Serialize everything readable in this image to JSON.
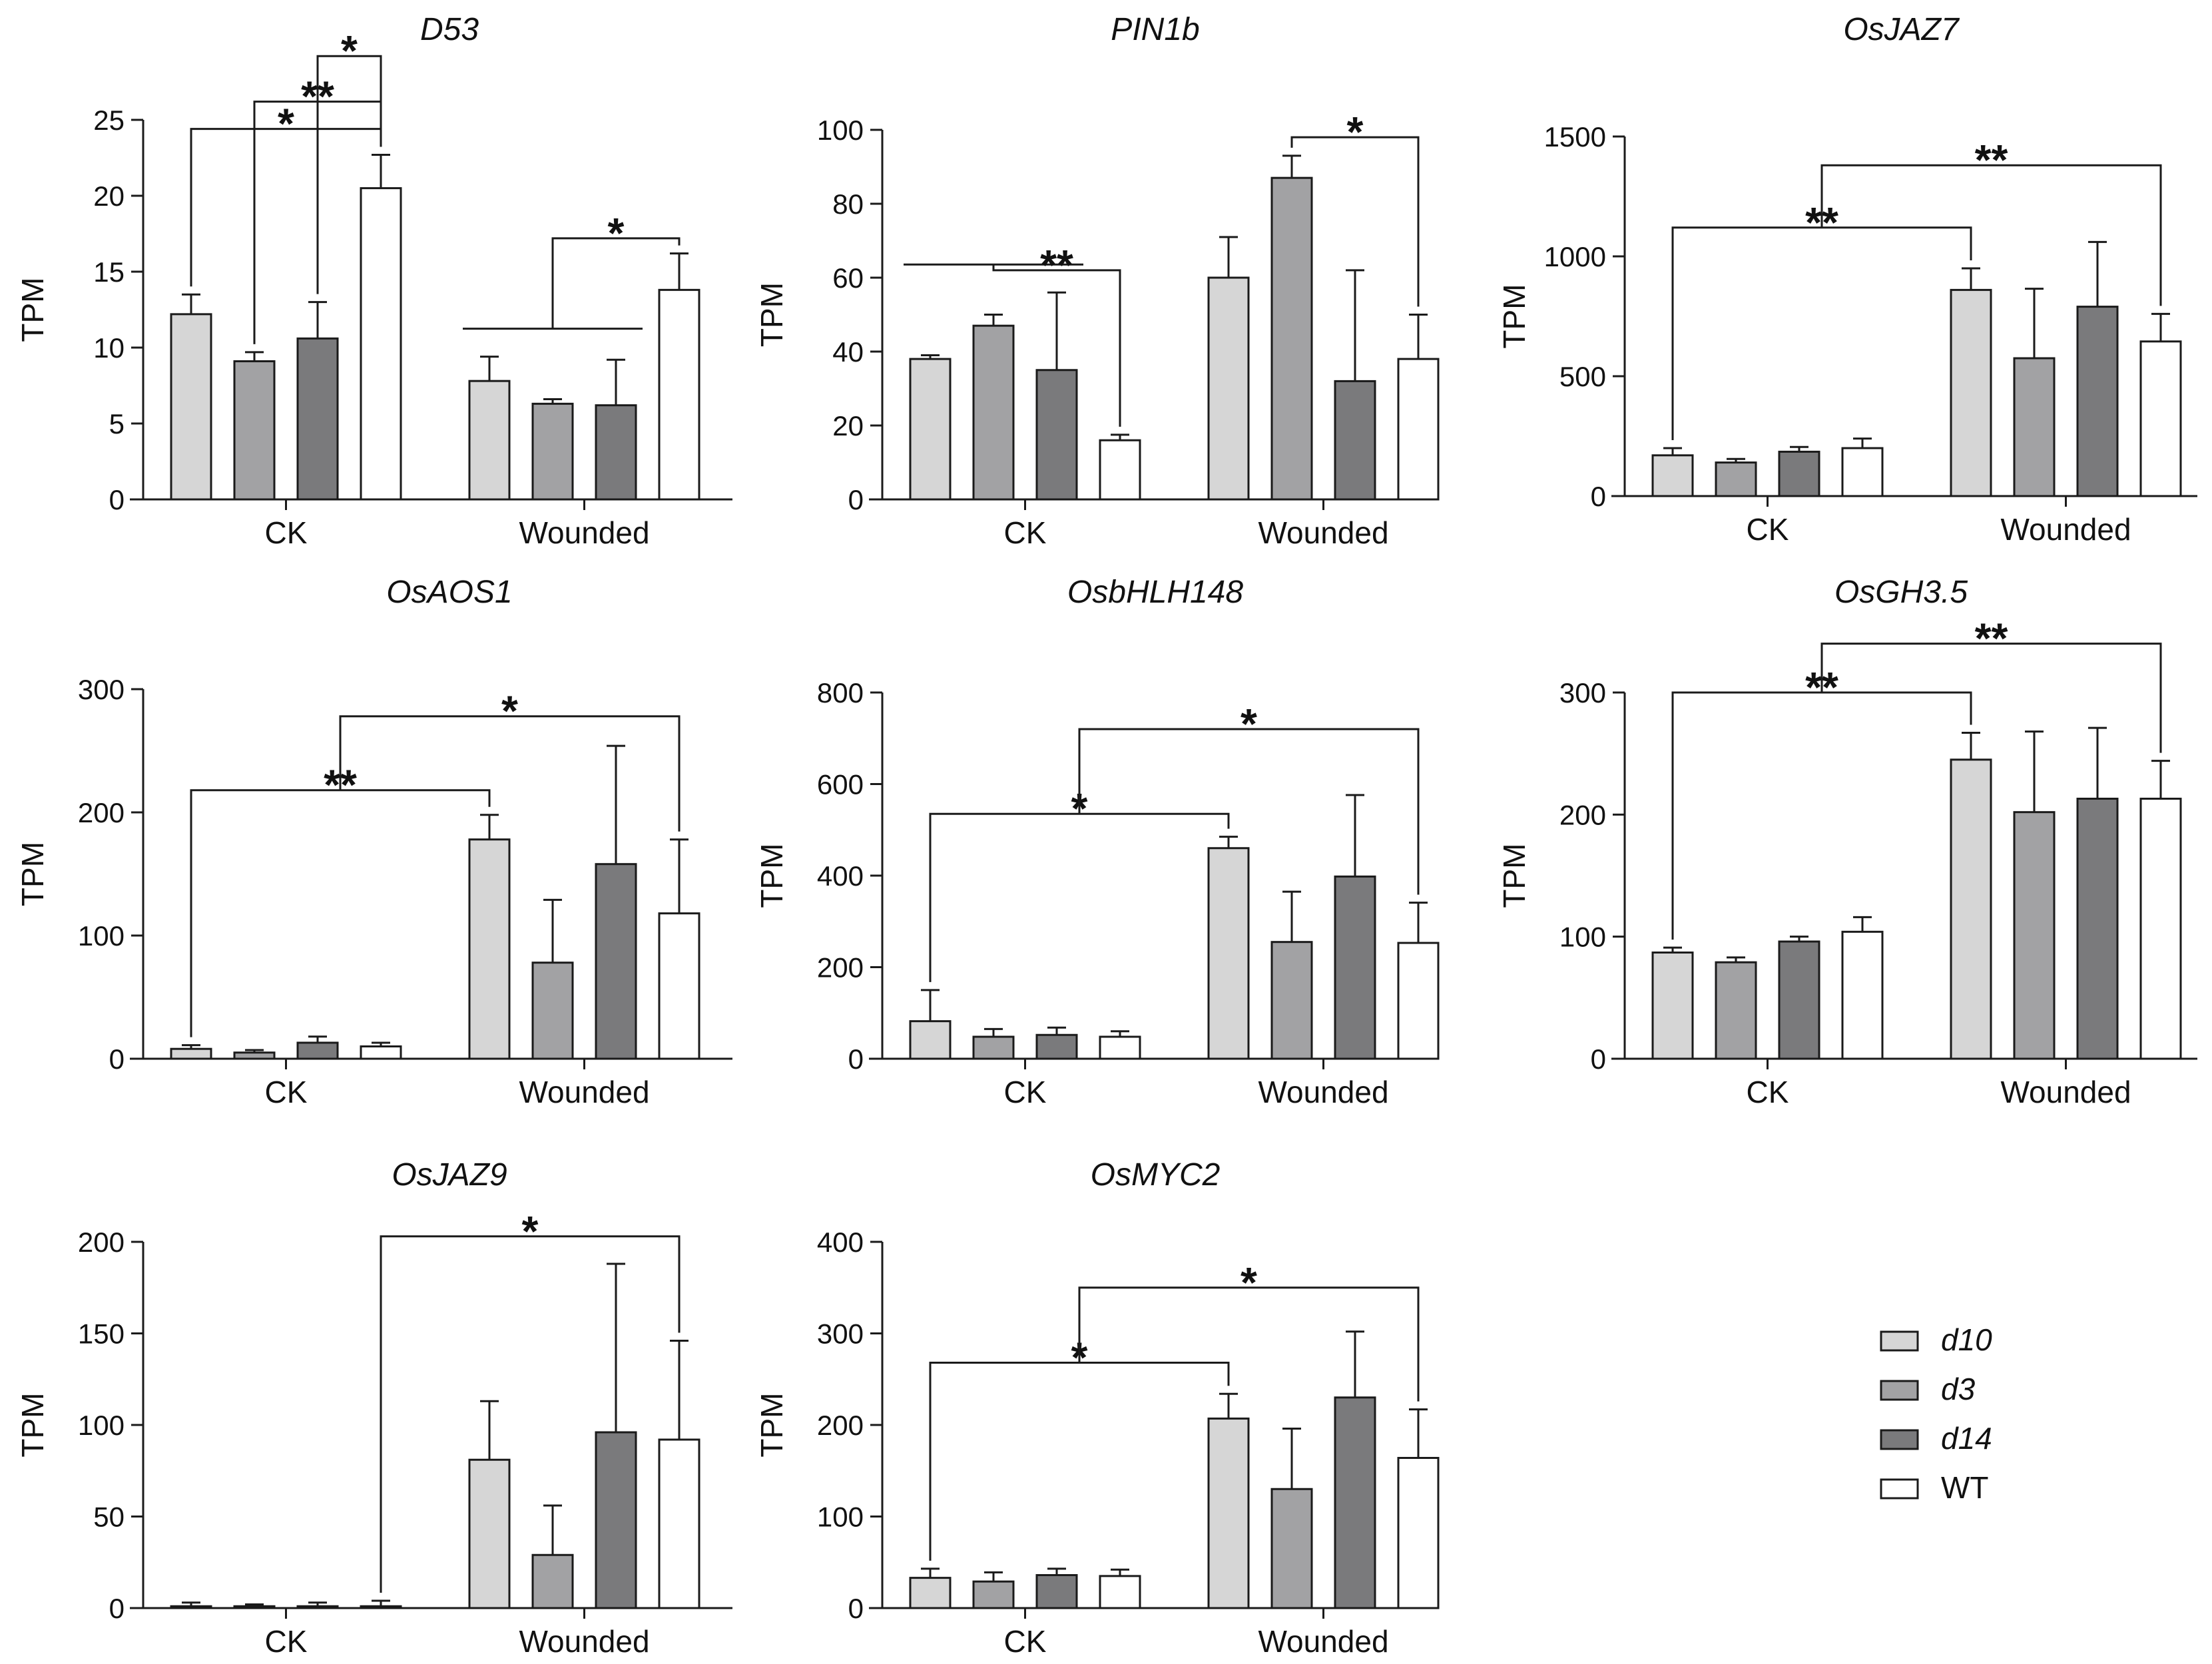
{
  "chart_data": [
    {
      "type": "bar",
      "title": "D53",
      "ylabel": "TPM",
      "xlabel": "",
      "ylim": [
        0,
        25
      ],
      "yticks": [
        0,
        5,
        10,
        15,
        20,
        25
      ],
      "categories": [
        "CK",
        "Wounded"
      ],
      "series": [
        {
          "name": "d10",
          "values": [
            12.2,
            7.8
          ],
          "errors": [
            1.3,
            1.6
          ]
        },
        {
          "name": "d3",
          "values": [
            9.1,
            6.3
          ],
          "errors": [
            0.6,
            0.3
          ]
        },
        {
          "name": "d14",
          "values": [
            10.6,
            6.2
          ],
          "errors": [
            2.4,
            3.0
          ]
        },
        {
          "name": "WT",
          "values": [
            20.5,
            13.8
          ],
          "errors": [
            2.2,
            2.4
          ]
        }
      ],
      "significance": [
        {
          "label": "*",
          "from": [
            0,
            0
          ],
          "to": [
            0,
            3
          ],
          "level": 24.4
        },
        {
          "label": "**",
          "from": [
            0,
            1
          ],
          "to": [
            0,
            3
          ],
          "level": 26.2
        },
        {
          "label": "*",
          "from": [
            0,
            2
          ],
          "to": [
            0,
            3
          ],
          "level": 29.2
        },
        {
          "label": "*",
          "fromGroup": 1,
          "to": [
            1,
            3
          ],
          "level": 17.2
        }
      ]
    },
    {
      "type": "bar",
      "title": "PIN1b",
      "ylabel": "TPM",
      "xlabel": "",
      "ylim": [
        0,
        100
      ],
      "yticks": [
        0,
        20,
        40,
        60,
        80,
        100
      ],
      "categories": [
        "CK",
        "Wounded"
      ],
      "series": [
        {
          "name": "d10",
          "values": [
            38,
            60
          ],
          "errors": [
            1,
            11
          ]
        },
        {
          "name": "d3",
          "values": [
            47,
            87
          ],
          "errors": [
            3,
            6
          ]
        },
        {
          "name": "d14",
          "values": [
            35,
            32
          ],
          "errors": [
            21,
            30
          ]
        },
        {
          "name": "WT",
          "values": [
            16,
            38
          ],
          "errors": [
            1.5,
            12
          ]
        }
      ],
      "significance": [
        {
          "label": "**",
          "fromGroup": 0,
          "to": [
            0,
            3
          ],
          "level": 62
        },
        {
          "label": "*",
          "from": [
            1,
            1
          ],
          "to": [
            1,
            3
          ],
          "level": 98
        }
      ]
    },
    {
      "type": "bar",
      "title": "OsJAZ7",
      "ylabel": "TPM",
      "xlabel": "",
      "ylim": [
        0,
        1500
      ],
      "yticks": [
        0,
        500,
        1000,
        1500
      ],
      "categories": [
        "CK",
        "Wounded"
      ],
      "series": [
        {
          "name": "d10",
          "values": [
            170,
            860
          ],
          "errors": [
            30,
            90
          ]
        },
        {
          "name": "d3",
          "values": [
            140,
            575
          ],
          "errors": [
            15,
            290
          ]
        },
        {
          "name": "d14",
          "values": [
            185,
            790
          ],
          "errors": [
            20,
            270
          ]
        },
        {
          "name": "WT",
          "values": [
            200,
            645
          ],
          "errors": [
            40,
            115
          ]
        }
      ],
      "significance": [
        {
          "label": "**",
          "from": [
            0,
            0
          ],
          "to": [
            1,
            0
          ],
          "level": 1120
        },
        {
          "label": "**",
          "fromLevel": 0,
          "to": [
            1,
            3
          ],
          "level": 1380
        }
      ]
    },
    {
      "type": "bar",
      "title": "OsAOS1",
      "ylabel": "TPM",
      "xlabel": "",
      "ylim": [
        0,
        300
      ],
      "yticks": [
        0,
        100,
        200,
        300
      ],
      "categories": [
        "CK",
        "Wounded"
      ],
      "series": [
        {
          "name": "d10",
          "values": [
            8,
            178
          ],
          "errors": [
            3,
            20
          ]
        },
        {
          "name": "d3",
          "values": [
            5,
            78
          ],
          "errors": [
            2,
            51
          ]
        },
        {
          "name": "d14",
          "values": [
            13,
            158
          ],
          "errors": [
            5,
            96
          ]
        },
        {
          "name": "WT",
          "values": [
            10,
            118
          ],
          "errors": [
            3,
            60
          ]
        }
      ],
      "significance": [
        {
          "label": "**",
          "from": [
            0,
            0
          ],
          "to": [
            1,
            0
          ],
          "level": 218
        },
        {
          "label": "*",
          "fromLevel": 0,
          "to": [
            1,
            3
          ],
          "level": 278
        }
      ]
    },
    {
      "type": "bar",
      "title": "OsbHLH148",
      "ylabel": "TPM",
      "xlabel": "",
      "ylim": [
        0,
        800
      ],
      "yticks": [
        0,
        200,
        400,
        600,
        800
      ],
      "categories": [
        "CK",
        "Wounded"
      ],
      "series": [
        {
          "name": "d10",
          "values": [
            82,
            460
          ],
          "errors": [
            68,
            25
          ]
        },
        {
          "name": "d3",
          "values": [
            48,
            255
          ],
          "errors": [
            17,
            110
          ]
        },
        {
          "name": "d14",
          "values": [
            52,
            398
          ],
          "errors": [
            16,
            178
          ]
        },
        {
          "name": "WT",
          "values": [
            48,
            253
          ],
          "errors": [
            12,
            88
          ]
        }
      ],
      "significance": [
        {
          "label": "*",
          "from": [
            0,
            0
          ],
          "to": [
            1,
            0
          ],
          "level": 535
        },
        {
          "label": "*",
          "fromLevel": 0,
          "to": [
            1,
            3
          ],
          "level": 720
        }
      ]
    },
    {
      "type": "bar",
      "title": "OsGH3.5",
      "ylabel": "TPM",
      "xlabel": "",
      "ylim": [
        0,
        300
      ],
      "yticks": [
        0,
        100,
        200,
        300
      ],
      "categories": [
        "CK",
        "Wounded"
      ],
      "series": [
        {
          "name": "d10",
          "values": [
            87,
            245
          ],
          "errors": [
            4,
            22
          ]
        },
        {
          "name": "d3",
          "values": [
            79,
            202
          ],
          "errors": [
            4,
            66
          ]
        },
        {
          "name": "d14",
          "values": [
            96,
            213
          ],
          "errors": [
            4,
            58
          ]
        },
        {
          "name": "WT",
          "values": [
            104,
            213
          ],
          "errors": [
            12,
            31
          ]
        }
      ],
      "significance": [
        {
          "label": "**",
          "from": [
            0,
            0
          ],
          "to": [
            1,
            0
          ],
          "level": 300
        },
        {
          "label": "**",
          "fromLevel": 0,
          "to": [
            1,
            3
          ],
          "level": 340
        }
      ]
    },
    {
      "type": "bar",
      "title": "OsJAZ9",
      "ylabel": "TPM",
      "xlabel": "",
      "ylim": [
        0,
        200
      ],
      "yticks": [
        0,
        50,
        100,
        150,
        200
      ],
      "categories": [
        "CK",
        "Wounded"
      ],
      "series": [
        {
          "name": "d10",
          "values": [
            1,
            81
          ],
          "errors": [
            2,
            32
          ]
        },
        {
          "name": "d3",
          "values": [
            1,
            29
          ],
          "errors": [
            1,
            27
          ]
        },
        {
          "name": "d14",
          "values": [
            1,
            96
          ],
          "errors": [
            2,
            92
          ]
        },
        {
          "name": "WT",
          "values": [
            1,
            92
          ],
          "errors": [
            3,
            54
          ]
        }
      ],
      "significance": [
        {
          "label": "*",
          "from": [
            0,
            3
          ],
          "to": [
            1,
            3
          ],
          "level": 203
        }
      ]
    },
    {
      "type": "bar",
      "title": "OsMYC2",
      "ylabel": "TPM",
      "xlabel": "",
      "ylim": [
        0,
        400
      ],
      "yticks": [
        0,
        100,
        200,
        300,
        400
      ],
      "categories": [
        "CK",
        "Wounded"
      ],
      "series": [
        {
          "name": "d10",
          "values": [
            33,
            207
          ],
          "errors": [
            10,
            27
          ]
        },
        {
          "name": "d3",
          "values": [
            29,
            130
          ],
          "errors": [
            10,
            66
          ]
        },
        {
          "name": "d14",
          "values": [
            36,
            230
          ],
          "errors": [
            7,
            72
          ]
        },
        {
          "name": "WT",
          "values": [
            35,
            164
          ],
          "errors": [
            7,
            53
          ]
        }
      ],
      "significance": [
        {
          "label": "*",
          "from": [
            0,
            0
          ],
          "to": [
            1,
            0
          ],
          "level": 268
        },
        {
          "label": "*",
          "fromLevel": 0,
          "to": [
            1,
            3
          ],
          "level": 350
        }
      ]
    }
  ],
  "legend": {
    "position": "bottom-right",
    "items": [
      {
        "name": "d10",
        "italic": true
      },
      {
        "name": "d3",
        "italic": true
      },
      {
        "name": "d14",
        "italic": true
      },
      {
        "name": "WT",
        "italic": false
      }
    ]
  },
  "colors": {
    "d10": "#d6d6d6",
    "d3": "#a2a2a4",
    "d14": "#7a7a7c",
    "WT": "#ffffff",
    "stroke": "#1a1a1a"
  }
}
